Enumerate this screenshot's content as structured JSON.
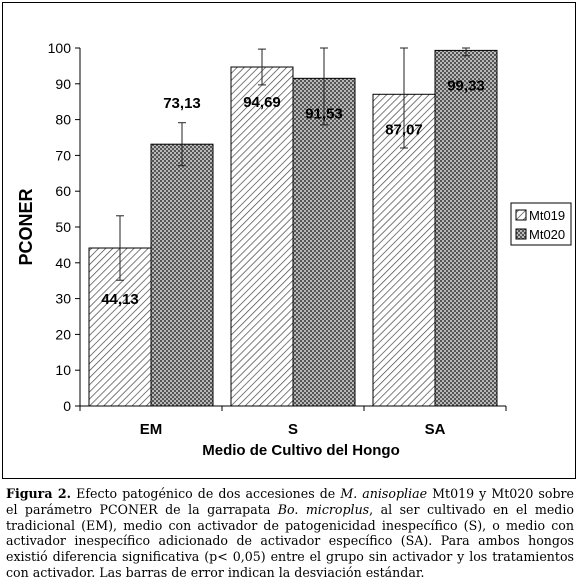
{
  "chart_data": {
    "type": "bar",
    "xlabel": "Medio de Cultivo del Hongo",
    "ylabel": "PCONER",
    "categories": [
      "EM",
      "S",
      "SA"
    ],
    "ylim": [
      0,
      100
    ],
    "yticks": [
      0,
      10,
      20,
      30,
      40,
      50,
      60,
      70,
      80,
      90,
      100
    ],
    "grid": false,
    "legend_position": "right",
    "series": [
      {
        "name": "Mt019",
        "values": [
          44.13,
          94.69,
          87.07
        ],
        "labels": [
          "44,13",
          "94,69",
          "87,07"
        ],
        "error": [
          9,
          5,
          15
        ],
        "pattern": "diagonal-hatch",
        "color": "#ffffff"
      },
      {
        "name": "Mt020",
        "values": [
          73.13,
          91.53,
          99.33
        ],
        "labels": [
          "73,13",
          "91,53",
          "99,33"
        ],
        "error": [
          6,
          13,
          1.5
        ],
        "pattern": "checker",
        "color": "#8a8a8a"
      }
    ]
  },
  "caption": {
    "label": "Figura 2.",
    "part1": " Efecto patogénico de dos accesiones de ",
    "species": "M. anisopliae",
    "part2": " Mt019 y Mt020 sobre el parámetro PCONER de la garrapata ",
    "tick": "Bo. microplus",
    "part3": ", al ser cultivado en el medio tradicional (EM), medio con activador de patogenicidad inespecífico (S), o medio con activador inespecífico adicionado de activador específico (SA). Para ambos hongos existió diferencia significativa (p< 0,05) entre el grupo sin activador y los tratamientos con activador. Las barras de error indican la desviación estándar."
  }
}
